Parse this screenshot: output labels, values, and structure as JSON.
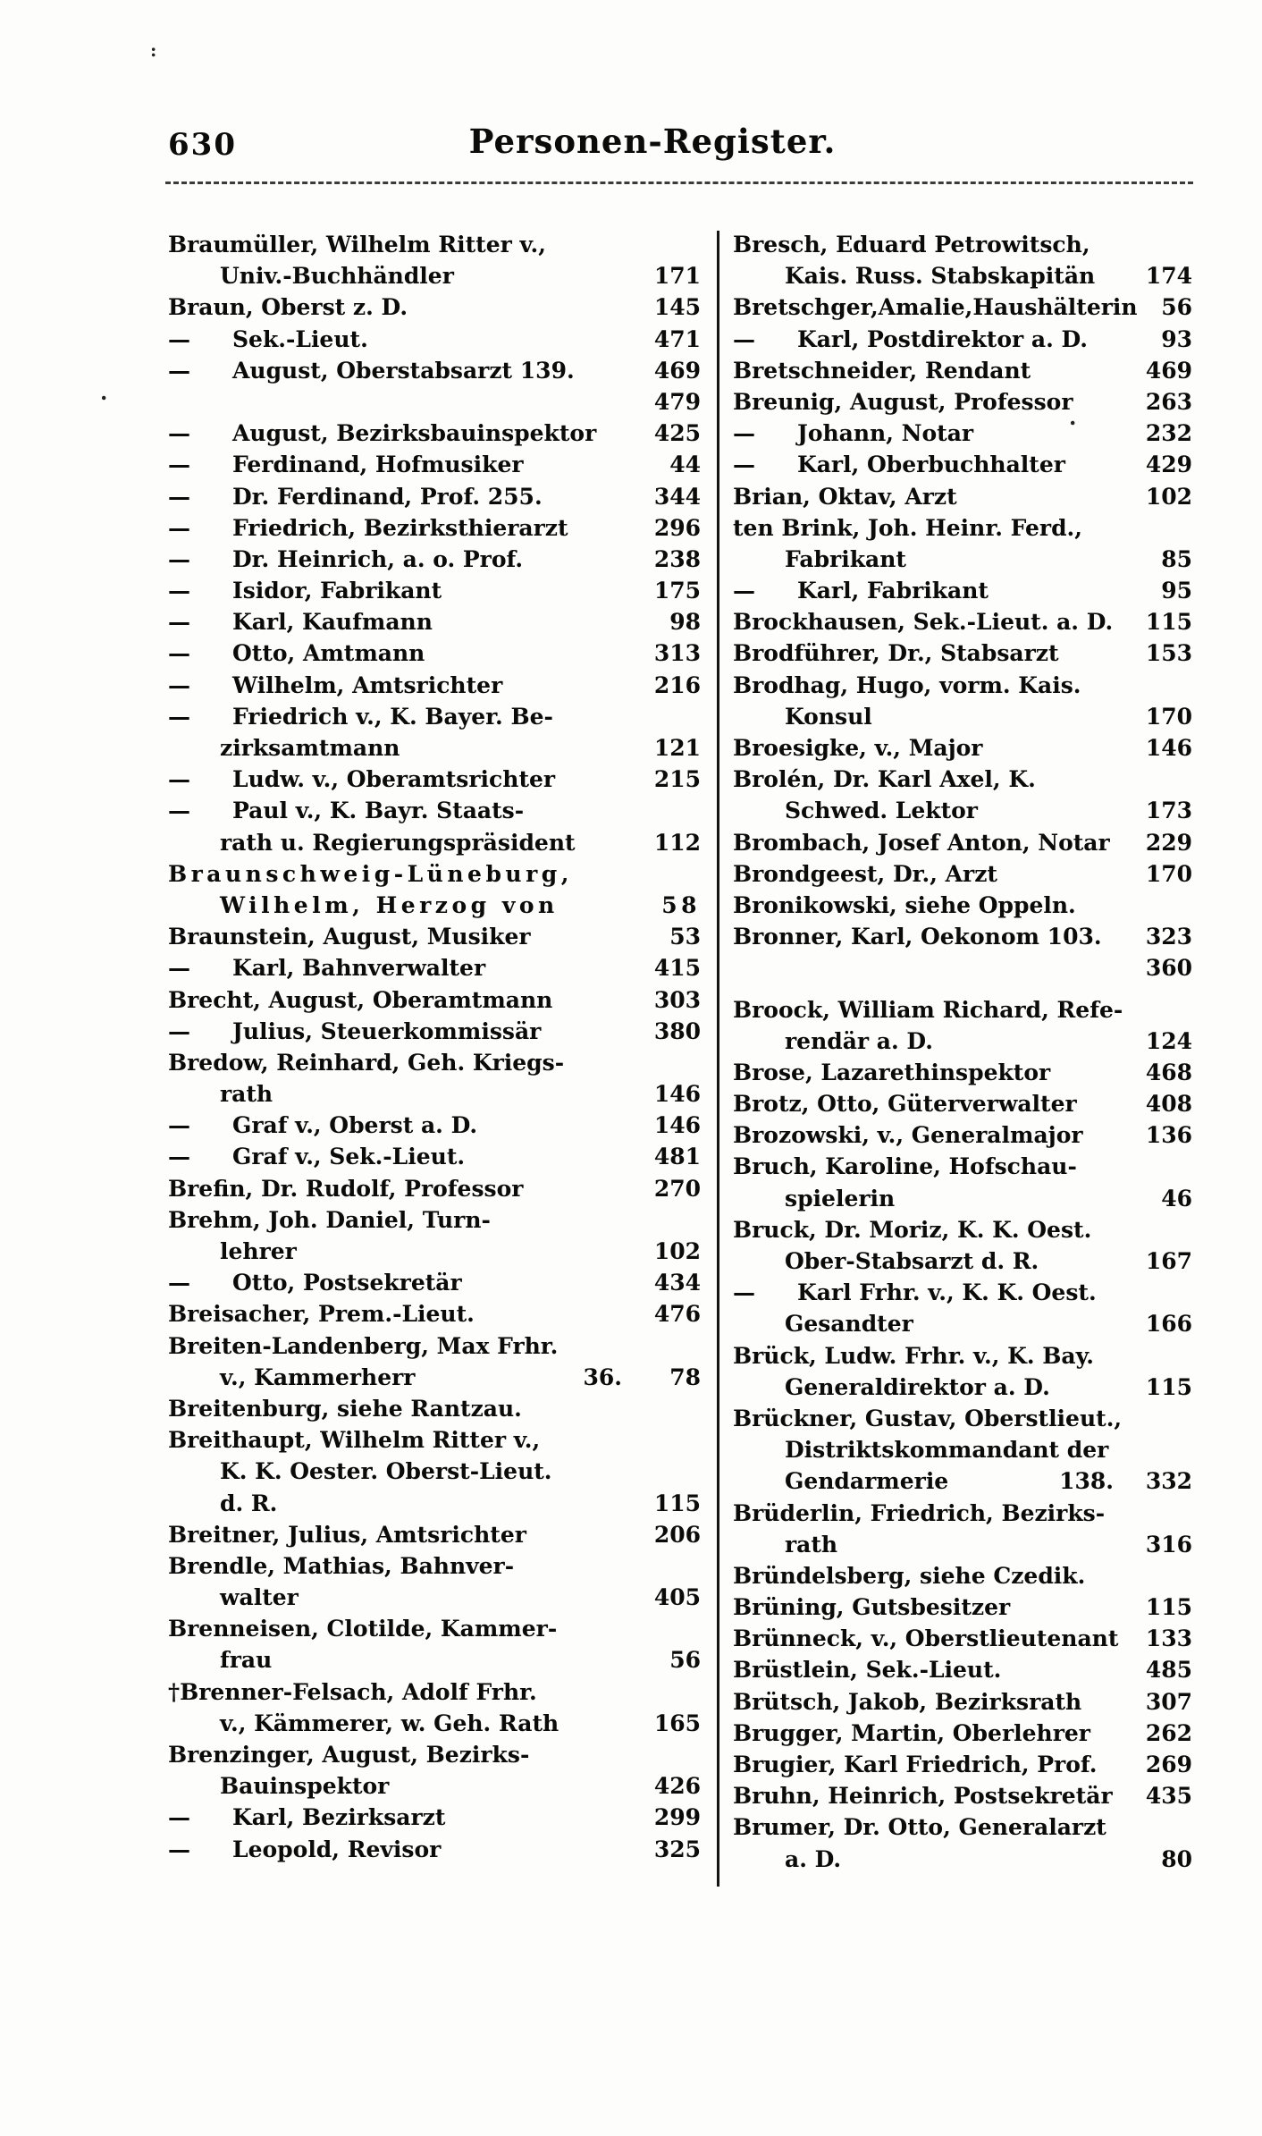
{
  "page": {
    "number": "630",
    "title": "Personen-Register."
  },
  "artifacts": {
    "mark1": ":",
    "mark2": ".",
    "mark3": "."
  },
  "index": {
    "left": [
      {
        "t": "Braumüller, Wilhelm Ritter v.,"
      },
      {
        "t": "Univ.-Buchhändler",
        "i": 1,
        "n": "171"
      },
      {
        "t": "Braun, Oberst z. D.",
        "n": "145"
      },
      {
        "t": "— Sek.-Lieut.",
        "n": "471"
      },
      {
        "t": "— August, Oberstabsarzt 139.",
        "n": "469"
      },
      {
        "t": "",
        "n": "479"
      },
      {
        "t": "— August, Bezirksbauinspektor",
        "n": "425"
      },
      {
        "t": "— Ferdinand, Hofmusiker",
        "n": "44"
      },
      {
        "t": "— Dr. Ferdinand, Prof. 255.",
        "n": "344"
      },
      {
        "t": "— Friedrich, Bezirksthierarzt",
        "n": "296"
      },
      {
        "t": "— Dr. Heinrich, a. o. Prof.",
        "n": "238"
      },
      {
        "t": "— Isidor, Fabrikant",
        "n": "175"
      },
      {
        "t": "— Karl, Kaufmann",
        "n": "98"
      },
      {
        "t": "— Otto, Amtmann",
        "n": "313"
      },
      {
        "t": "— Wilhelm, Amtsrichter",
        "n": "216"
      },
      {
        "t": "— Friedrich v., K. Bayer. Be-"
      },
      {
        "t": "zirksamtmann",
        "i": 1,
        "n": "121"
      },
      {
        "t": "— Ludw. v., Oberamtsrichter",
        "n": "215"
      },
      {
        "t": "— Paul v., K. Bayr. Staats-"
      },
      {
        "t": "rath u. Regierungspräsident",
        "i": 1,
        "n": "112"
      },
      {
        "t": "Braunschweig-Lüneburg,",
        "sp": true
      },
      {
        "t": "Wilhelm, Herzog von",
        "i": 1,
        "sp": true,
        "n": "58"
      },
      {
        "t": "Braunstein, August, Musiker",
        "n": "53"
      },
      {
        "t": "— Karl, Bahnverwalter",
        "n": "415"
      },
      {
        "t": "Brecht, August, Oberamtmann",
        "n": "303"
      },
      {
        "t": "— Julius, Steuerkommissär",
        "n": "380"
      },
      {
        "t": "Bredow, Reinhard, Geh. Kriegs-"
      },
      {
        "t": "rath",
        "i": 1,
        "n": "146"
      },
      {
        "t": "— Graf v., Oberst a. D.",
        "n": "146"
      },
      {
        "t": "— Graf v., Sek.-Lieut.",
        "n": "481"
      },
      {
        "t": "Brefin, Dr. Rudolf, Professor",
        "n": "270"
      },
      {
        "t": "Brehm, Joh. Daniel, Turn-"
      },
      {
        "t": "lehrer",
        "i": 1,
        "n": "102"
      },
      {
        "t": "— Otto, Postsekretär",
        "n": "434"
      },
      {
        "t": "Breisacher, Prem.-Lieut.",
        "n": "476"
      },
      {
        "t": "Breiten-Landenberg, Max Frhr."
      },
      {
        "t": "v., Kammerherr",
        "i": 1,
        "m": "36.",
        "n": "78"
      },
      {
        "t": "Breitenburg, siehe Rantzau."
      },
      {
        "t": "Breithaupt, Wilhelm Ritter v.,"
      },
      {
        "t": "K. K. Oester. Oberst-Lieut.",
        "i": 1
      },
      {
        "t": "d. R.",
        "i": 1,
        "n": "115"
      },
      {
        "t": "Breitner, Julius, Amtsrichter",
        "n": "206"
      },
      {
        "t": "Brendle, Mathias, Bahnver-"
      },
      {
        "t": "walter",
        "i": 1,
        "n": "405"
      },
      {
        "t": "Brenneisen, Clotilde, Kammer-"
      },
      {
        "t": "frau",
        "i": 1,
        "n": "56"
      },
      {
        "t": "†Brenner-Felsach, Adolf Frhr."
      },
      {
        "t": "v., Kämmerer, w. Geh. Rath",
        "i": 1,
        "n": "165"
      },
      {
        "t": "Brenzinger, August, Bezirks-"
      },
      {
        "t": "Bauinspektor",
        "i": 1,
        "n": "426"
      },
      {
        "t": "— Karl, Bezirksarzt",
        "n": "299"
      },
      {
        "t": "— Leopold, Revisor",
        "n": "325"
      }
    ],
    "right": [
      {
        "t": "Bresch, Eduard Petrowitsch,"
      },
      {
        "t": "Kais. Russ. Stabskapitän",
        "i": 1,
        "n": "174"
      },
      {
        "t": "Bretschger,Amalie,Haushälterin",
        "n": "56"
      },
      {
        "t": "— Karl, Postdirektor a. D.",
        "n": "93"
      },
      {
        "t": "Bretschneider, Rendant",
        "n": "469"
      },
      {
        "t": "Breunig, August, Professor",
        "n": "263"
      },
      {
        "t": "— Johann, Notar",
        "n": "232"
      },
      {
        "t": "— Karl, Oberbuchhalter",
        "n": "429"
      },
      {
        "t": "Brian, Oktav, Arzt",
        "n": "102"
      },
      {
        "t": "ten Brink, Joh. Heinr. Ferd.,"
      },
      {
        "t": "Fabrikant",
        "i": 1,
        "n": "85"
      },
      {
        "t": "— Karl, Fabrikant",
        "n": "95"
      },
      {
        "t": "Brockhausen, Sek.-Lieut. a. D.",
        "n": "115"
      },
      {
        "t": "Brodführer, Dr., Stabsarzt",
        "n": "153"
      },
      {
        "t": "Brodhag, Hugo, vorm. Kais."
      },
      {
        "t": "Konsul",
        "i": 1,
        "n": "170"
      },
      {
        "t": "Broesigke, v., Major",
        "n": "146"
      },
      {
        "t": "Brolén, Dr. Karl Axel, K."
      },
      {
        "t": "Schwed. Lektor",
        "i": 1,
        "n": "173"
      },
      {
        "t": "Brombach, Josef Anton, Notar",
        "n": "229"
      },
      {
        "t": "Brondgeest, Dr., Arzt",
        "n": "170"
      },
      {
        "t": "Bronikowski, siehe Oppeln."
      },
      {
        "t": "Bronner, Karl, Oekonom 103.",
        "n": "323"
      },
      {
        "t": "",
        "n": "360"
      },
      {
        "t": "Broock, William Richard, Refe-",
        "gap": true
      },
      {
        "t": "rendär a. D.",
        "i": 1,
        "n": "124"
      },
      {
        "t": "Brose, Lazarethinspektor",
        "n": "468"
      },
      {
        "t": "Brotz, Otto, Güterverwalter",
        "n": "408"
      },
      {
        "t": "Brozowski, v., Generalmajor",
        "n": "136"
      },
      {
        "t": "Bruch, Karoline, Hofschau-"
      },
      {
        "t": "spielerin",
        "i": 1,
        "n": "46"
      },
      {
        "t": "Bruck, Dr. Moriz, K. K. Oest."
      },
      {
        "t": "Ober-Stabsarzt d. R.",
        "i": 1,
        "n": "167"
      },
      {
        "t": "— Karl Frhr. v., K. K. Oest."
      },
      {
        "t": "Gesandter",
        "i": 1,
        "n": "166"
      },
      {
        "t": "Brück, Ludw. Frhr. v., K. Bay."
      },
      {
        "t": "Generaldirektor a. D.",
        "i": 1,
        "n": "115"
      },
      {
        "t": "Brückner, Gustav, Oberstlieut.,"
      },
      {
        "t": "Distriktskommandant der",
        "i": 1
      },
      {
        "t": "Gendarmerie",
        "i": 1,
        "m": "138.",
        "n": "332"
      },
      {
        "t": "Brüderlin, Friedrich, Bezirks-"
      },
      {
        "t": "rath",
        "i": 1,
        "n": "316"
      },
      {
        "t": "Bründelsberg, siehe Czedik."
      },
      {
        "t": "Brüning, Gutsbesitzer",
        "n": "115"
      },
      {
        "t": "Brünneck, v., Oberstlieutenant",
        "n": "133"
      },
      {
        "t": "Brüstlein, Sek.-Lieut.",
        "n": "485"
      },
      {
        "t": "Brütsch, Jakob, Bezirksrath",
        "n": "307"
      },
      {
        "t": "Brugger, Martin, Oberlehrer",
        "n": "262"
      },
      {
        "t": "Brugier, Karl Friedrich, Prof.",
        "n": "269"
      },
      {
        "t": "Bruhn, Heinrich, Postsekretär",
        "n": "435"
      },
      {
        "t": "Brumer, Dr. Otto, Generalarzt"
      },
      {
        "t": "a. D.",
        "i": 1,
        "n": "80"
      }
    ]
  }
}
